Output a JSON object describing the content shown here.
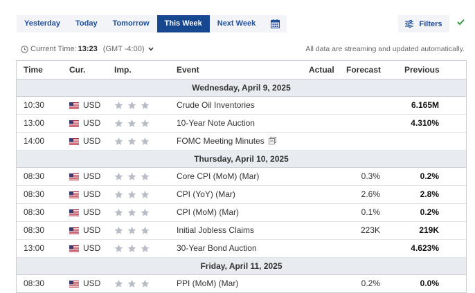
{
  "tabs": [
    {
      "label": "Yesterday",
      "active": false
    },
    {
      "label": "Today",
      "active": false
    },
    {
      "label": "Tomorrow",
      "active": false
    },
    {
      "label": "This Week",
      "active": true
    },
    {
      "label": "Next Week",
      "active": false
    }
  ],
  "filters_label": "Filters",
  "time_label": "Current Time:",
  "current_time": "13:23",
  "timezone": "(GMT -4:00)",
  "streaming_note": "All data are streaming and updated automatically.",
  "columns": {
    "time": "Time",
    "cur": "Cur.",
    "imp": "Imp.",
    "event": "Event",
    "actual": "Actual",
    "forecast": "Forecast",
    "previous": "Previous"
  },
  "colors": {
    "accent": "#17478f",
    "link": "#1f4e9b",
    "check": "#2e9e3e",
    "star_off": "#b9bec6",
    "day_bg": "#e8ebef"
  },
  "days": [
    {
      "date": "Wednesday, April 9, 2025",
      "events": [
        {
          "time": "10:30",
          "currency": "USD",
          "importance": 0,
          "event": "Crude Oil Inventories",
          "has_doc": false,
          "actual": "",
          "forecast": "",
          "previous": "6.165M"
        },
        {
          "time": "13:00",
          "currency": "USD",
          "importance": 0,
          "event": "10-Year Note Auction",
          "has_doc": false,
          "actual": "",
          "forecast": "",
          "previous": "4.310%"
        },
        {
          "time": "14:00",
          "currency": "USD",
          "importance": 0,
          "event": "FOMC Meeting Minutes",
          "has_doc": true,
          "actual": "",
          "forecast": "",
          "previous": ""
        }
      ]
    },
    {
      "date": "Thursday, April 10, 2025",
      "events": [
        {
          "time": "08:30",
          "currency": "USD",
          "importance": 0,
          "event": "Core CPI (MoM) (Mar)",
          "has_doc": false,
          "actual": "",
          "forecast": "0.3%",
          "previous": "0.2%"
        },
        {
          "time": "08:30",
          "currency": "USD",
          "importance": 0,
          "event": "CPI (YoY) (Mar)",
          "has_doc": false,
          "actual": "",
          "forecast": "2.6%",
          "previous": "2.8%"
        },
        {
          "time": "08:30",
          "currency": "USD",
          "importance": 0,
          "event": "CPI (MoM) (Mar)",
          "has_doc": false,
          "actual": "",
          "forecast": "0.1%",
          "previous": "0.2%"
        },
        {
          "time": "08:30",
          "currency": "USD",
          "importance": 0,
          "event": "Initial Jobless Claims",
          "has_doc": false,
          "actual": "",
          "forecast": "223K",
          "previous": "219K"
        },
        {
          "time": "13:00",
          "currency": "USD",
          "importance": 0,
          "event": "30-Year Bond Auction",
          "has_doc": false,
          "actual": "",
          "forecast": "",
          "previous": "4.623%"
        }
      ]
    },
    {
      "date": "Friday, April 11, 2025",
      "events": [
        {
          "time": "08:30",
          "currency": "USD",
          "importance": 0,
          "event": "PPI (MoM) (Mar)",
          "has_doc": false,
          "actual": "",
          "forecast": "0.2%",
          "previous": "0.0%"
        }
      ]
    }
  ]
}
